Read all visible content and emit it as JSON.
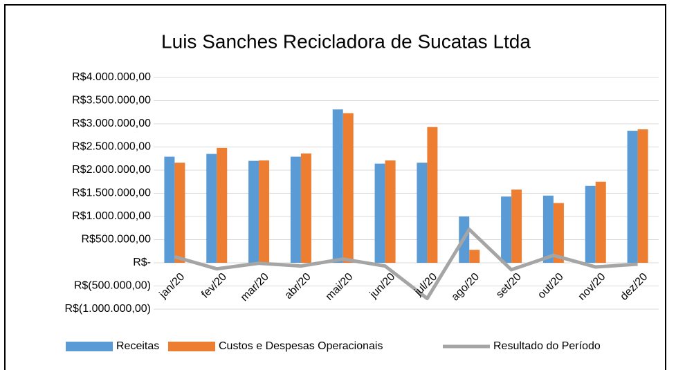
{
  "chart_data": {
    "type": "bar",
    "title": "Luis Sanches Recicladora de Sucatas Ltda",
    "categories": [
      "jan/20",
      "fev/20",
      "mar/20",
      "abr/20",
      "mai/20",
      "jun/20",
      "jul/20",
      "ago/20",
      "set/20",
      "out/20",
      "nov/20",
      "dez/20"
    ],
    "series": [
      {
        "name": "Receitas",
        "type": "bar",
        "color": "#5b9bd5",
        "values": [
          2290000,
          2350000,
          2200000,
          2290000,
          3310000,
          2140000,
          2160000,
          1000000,
          1430000,
          1450000,
          1660000,
          2850000
        ]
      },
      {
        "name": "Custos e Despesas Operacionais",
        "type": "bar",
        "color": "#ed7d31",
        "values": [
          2160000,
          2480000,
          2210000,
          2360000,
          3230000,
          2210000,
          2930000,
          280000,
          1580000,
          1290000,
          1750000,
          2880000
        ]
      },
      {
        "name": "Resultado do Período",
        "type": "line",
        "color": "#a5a5a5",
        "values": [
          130000,
          -130000,
          -10000,
          -70000,
          80000,
          -70000,
          -770000,
          720000,
          -150000,
          160000,
          -90000,
          -30000
        ]
      }
    ],
    "ylim": [
      -1000000,
      4000000
    ],
    "yticks": [
      {
        "value": -1000000,
        "label": "R$(1.000.000,00)"
      },
      {
        "value": -500000,
        "label": "R$(500.000,00)"
      },
      {
        "value": 0,
        "label": "R$-"
      },
      {
        "value": 500000,
        "label": "R$500.000,00"
      },
      {
        "value": 1000000,
        "label": "R$1.000.000,00"
      },
      {
        "value": 1500000,
        "label": "R$1.500.000,00"
      },
      {
        "value": 2000000,
        "label": "R$2.000.000,00"
      },
      {
        "value": 2500000,
        "label": "R$2.500.000,00"
      },
      {
        "value": 3000000,
        "label": "R$3.000.000,00"
      },
      {
        "value": 3500000,
        "label": "R$3.500.000,00"
      },
      {
        "value": 4000000,
        "label": "R$4.000.000,00"
      }
    ],
    "grid": true,
    "legend": "bottom"
  }
}
